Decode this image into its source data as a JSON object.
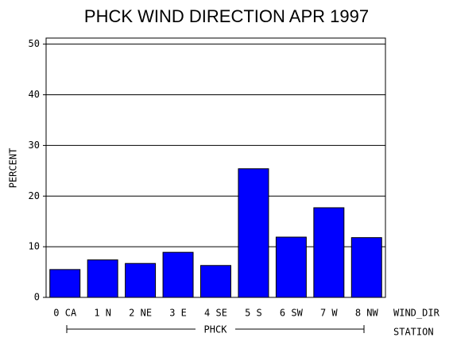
{
  "chart_data": {
    "type": "bar",
    "title": "PHCK WIND DIRECTION APR 1997",
    "ylabel": "PERCENT",
    "xlabel": "WIND_DIR",
    "group": "PHCK",
    "group_label": "STATION",
    "categories": [
      "0 CA",
      "1 N",
      "2 NE",
      "3 E",
      "4 SE",
      "5 S",
      "6 SW",
      "7 W",
      "8 NW"
    ],
    "values": [
      5.5,
      7.4,
      6.7,
      8.9,
      6.3,
      25.4,
      11.9,
      17.7,
      11.8
    ],
    "color": "#0000ff",
    "ylim": [
      0,
      51.2
    ],
    "yticks": [
      0,
      10,
      20,
      30,
      40,
      50
    ],
    "grid": true
  }
}
